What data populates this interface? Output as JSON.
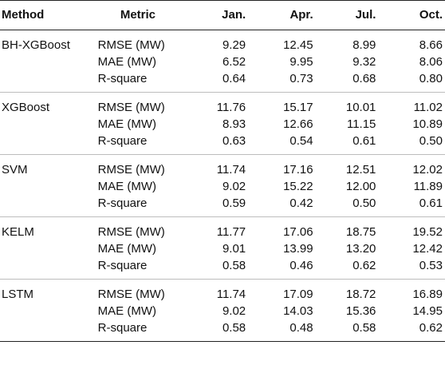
{
  "header": {
    "method": "Method",
    "metric": "Metric",
    "months": [
      "Jan.",
      "Apr.",
      "Jul.",
      "Oct."
    ]
  },
  "groups": [
    {
      "method": "BH-XGBoost",
      "rows": [
        {
          "metric": "RMSE (MW)",
          "values": [
            "9.29",
            "12.45",
            "8.99",
            "8.66"
          ]
        },
        {
          "metric": "MAE (MW)",
          "values": [
            "6.52",
            "9.95",
            "9.32",
            "8.06"
          ]
        },
        {
          "metric": "R-square",
          "values": [
            "0.64",
            "0.73",
            "0.68",
            "0.80"
          ]
        }
      ]
    },
    {
      "method": "XGBoost",
      "rows": [
        {
          "metric": "RMSE (MW)",
          "values": [
            "11.76",
            "15.17",
            "10.01",
            "11.02"
          ]
        },
        {
          "metric": "MAE (MW)",
          "values": [
            "8.93",
            "12.66",
            "11.15",
            "10.89"
          ]
        },
        {
          "metric": "R-square",
          "values": [
            "0.63",
            "0.54",
            "0.61",
            "0.50"
          ]
        }
      ]
    },
    {
      "method": "SVM",
      "rows": [
        {
          "metric": "RMSE (MW)",
          "values": [
            "11.74",
            "17.16",
            "12.51",
            "12.02"
          ]
        },
        {
          "metric": "MAE (MW)",
          "values": [
            "9.02",
            "15.22",
            "12.00",
            "11.89"
          ]
        },
        {
          "metric": "R-square",
          "values": [
            "0.59",
            "0.42",
            "0.50",
            "0.61"
          ]
        }
      ]
    },
    {
      "method": "KELM",
      "rows": [
        {
          "metric": "RMSE (MW)",
          "values": [
            "11.77",
            "17.06",
            "18.75",
            "19.52"
          ]
        },
        {
          "metric": "MAE (MW)",
          "values": [
            "9.01",
            "13.99",
            "13.20",
            "12.42"
          ]
        },
        {
          "metric": "R-square",
          "values": [
            "0.58",
            "0.46",
            "0.62",
            "0.53"
          ]
        }
      ]
    },
    {
      "method": "LSTM",
      "rows": [
        {
          "metric": "RMSE (MW)",
          "values": [
            "11.74",
            "17.09",
            "18.72",
            "16.89"
          ]
        },
        {
          "metric": "MAE (MW)",
          "values": [
            "9.02",
            "14.03",
            "15.36",
            "14.95"
          ]
        },
        {
          "metric": "R-square",
          "values": [
            "0.58",
            "0.48",
            "0.58",
            "0.62"
          ]
        }
      ]
    }
  ]
}
